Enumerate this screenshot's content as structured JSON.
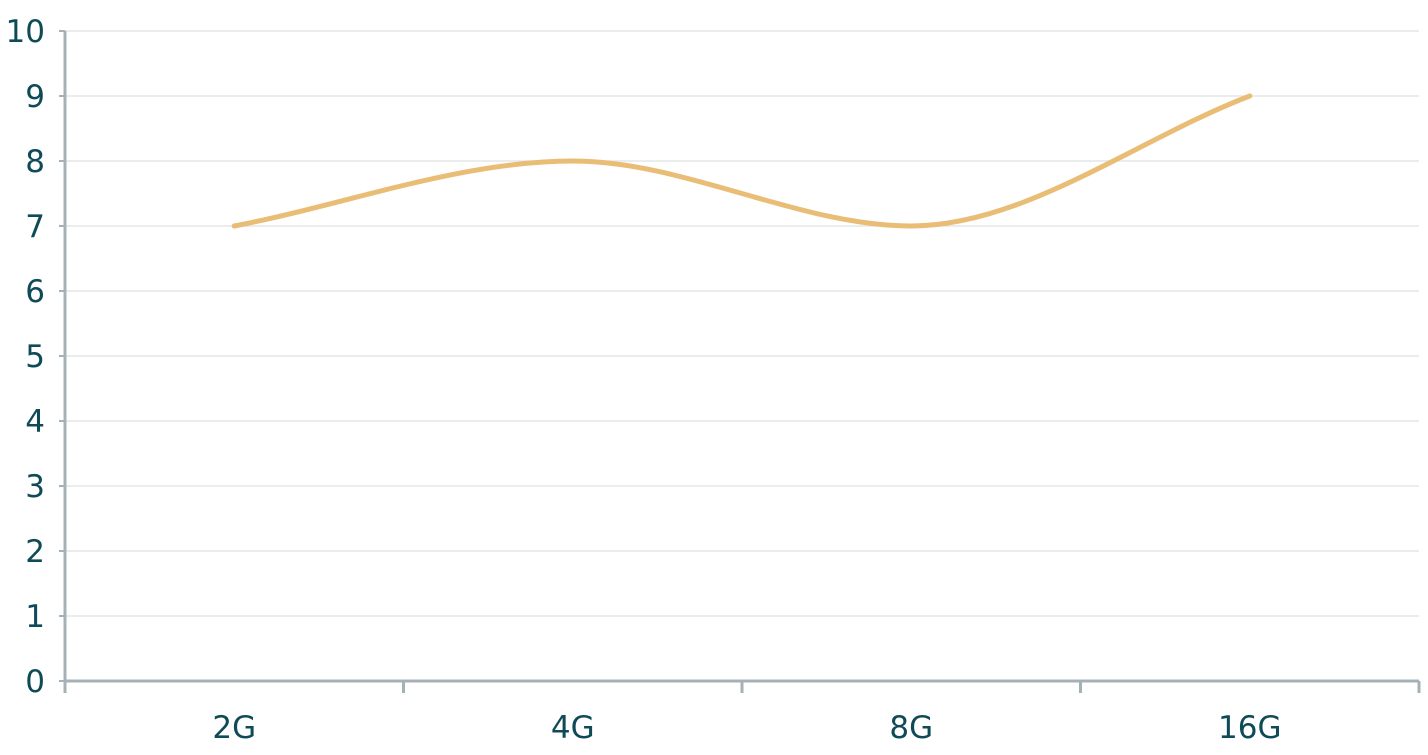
{
  "chart_data": {
    "type": "line",
    "categories": [
      "2G",
      "4G",
      "8G",
      "16G"
    ],
    "series": [
      {
        "values": [
          7,
          8,
          7,
          9
        ]
      }
    ],
    "ylim": [
      0,
      10
    ],
    "yticks": [
      0,
      1,
      2,
      3,
      4,
      5,
      6,
      7,
      8,
      9,
      10
    ],
    "title": "",
    "xlabel": "",
    "ylabel": "",
    "grid": true,
    "legend": "none",
    "smooth": true
  },
  "colors": {
    "series": "#e9bd76",
    "grid": "#e3e6e8",
    "axis": "#a4b1b7",
    "label": "#0f4a57"
  }
}
